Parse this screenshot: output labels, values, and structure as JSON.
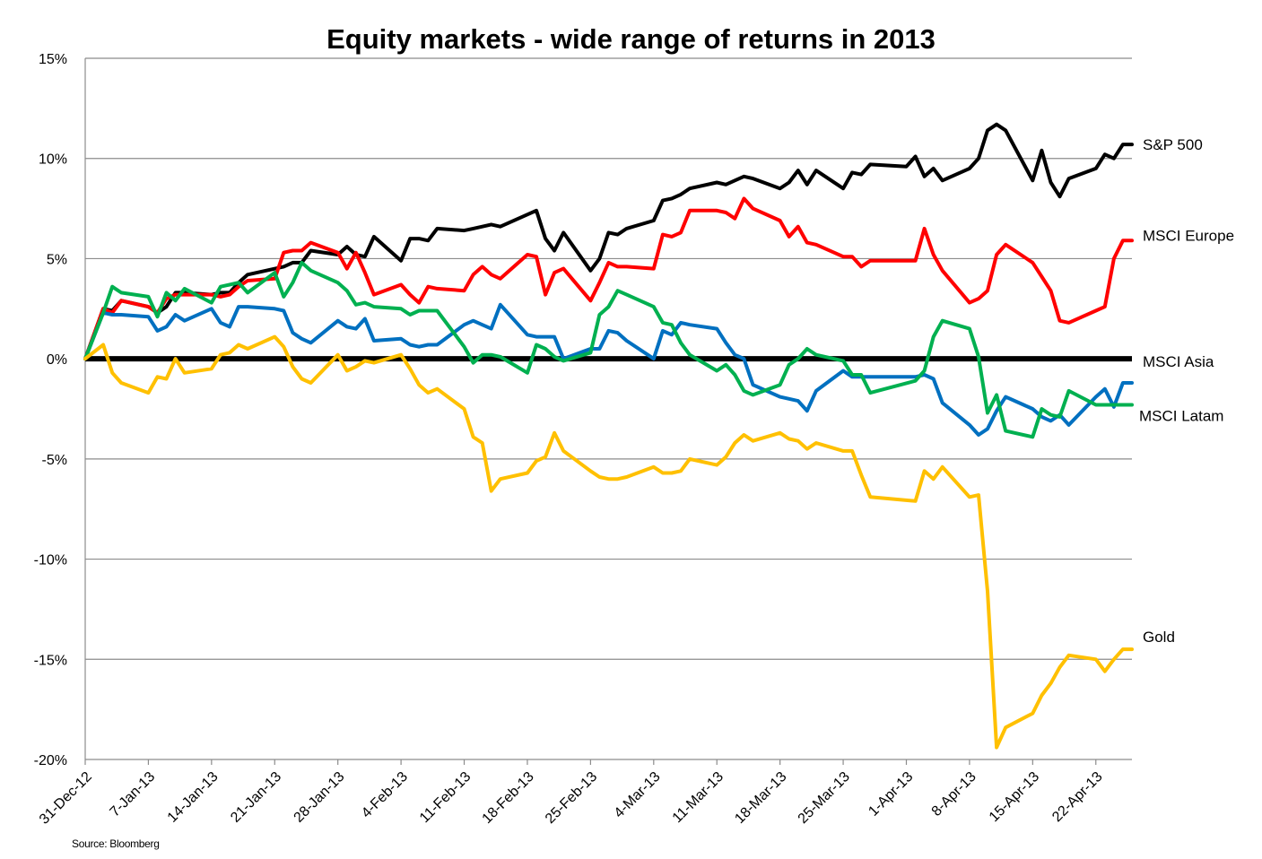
{
  "chart_data": {
    "type": "line",
    "title": "Equity markets - wide range of returns in 2013",
    "xlabel": "",
    "ylabel": "",
    "ylim": [
      -20,
      15
    ],
    "yticks": [
      15,
      10,
      5,
      0,
      -5,
      -10,
      -15,
      -20
    ],
    "ytick_labels": [
      "15%",
      "10%",
      "5%",
      "0%",
      "-5%",
      "-10%",
      "-15%",
      "-20%"
    ],
    "x_start": "2012-12-31",
    "x_end": "2013-04-26",
    "xtick_dates": [
      "2012-12-31",
      "2013-01-07",
      "2013-01-14",
      "2013-01-21",
      "2013-01-28",
      "2013-02-04",
      "2013-02-11",
      "2013-02-18",
      "2013-02-25",
      "2013-03-04",
      "2013-03-11",
      "2013-03-18",
      "2013-03-25",
      "2013-04-01",
      "2013-04-08",
      "2013-04-15",
      "2013-04-22"
    ],
    "xtick_labels": [
      "31-Dec-12",
      "7-Jan-13",
      "14-Jan-13",
      "21-Jan-13",
      "28-Jan-13",
      "4-Feb-13",
      "11-Feb-13",
      "18-Feb-13",
      "25-Feb-13",
      "4-Mar-13",
      "11-Mar-13",
      "18-Mar-13",
      "25-Mar-13",
      "1-Apr-13",
      "8-Apr-13",
      "15-Apr-13",
      "22-Apr-13"
    ],
    "zero_line": true,
    "grid": "horizontal",
    "series": [
      {
        "name": "S&P 500",
        "color": "#000000",
        "x": [
          "2012-12-31",
          "2013-01-02",
          "2013-01-03",
          "2013-01-04",
          "2013-01-07",
          "2013-01-08",
          "2013-01-09",
          "2013-01-10",
          "2013-01-11",
          "2013-01-14",
          "2013-01-15",
          "2013-01-16",
          "2013-01-17",
          "2013-01-18",
          "2013-01-22",
          "2013-01-23",
          "2013-01-24",
          "2013-01-25",
          "2013-01-28",
          "2013-01-29",
          "2013-01-30",
          "2013-01-31",
          "2013-02-01",
          "2013-02-04",
          "2013-02-05",
          "2013-02-06",
          "2013-02-07",
          "2013-02-08",
          "2013-02-11",
          "2013-02-12",
          "2013-02-13",
          "2013-02-14",
          "2013-02-15",
          "2013-02-19",
          "2013-02-20",
          "2013-02-21",
          "2013-02-22",
          "2013-02-25",
          "2013-02-26",
          "2013-02-27",
          "2013-02-28",
          "2013-03-01",
          "2013-03-04",
          "2013-03-05",
          "2013-03-06",
          "2013-03-07",
          "2013-03-08",
          "2013-03-11",
          "2013-03-12",
          "2013-03-13",
          "2013-03-14",
          "2013-03-15",
          "2013-03-18",
          "2013-03-19",
          "2013-03-20",
          "2013-03-21",
          "2013-03-22",
          "2013-03-25",
          "2013-03-26",
          "2013-03-27",
          "2013-03-28",
          "2013-04-01",
          "2013-04-02",
          "2013-04-03",
          "2013-04-04",
          "2013-04-05",
          "2013-04-08",
          "2013-04-09",
          "2013-04-10",
          "2013-04-11",
          "2013-04-12",
          "2013-04-15",
          "2013-04-16",
          "2013-04-17",
          "2013-04-18",
          "2013-04-19",
          "2013-04-22",
          "2013-04-23",
          "2013-04-24",
          "2013-04-25",
          "2013-04-26"
        ],
        "values": [
          0.0,
          2.5,
          2.4,
          2.9,
          2.6,
          2.3,
          2.6,
          3.3,
          3.3,
          3.2,
          3.3,
          3.3,
          3.8,
          4.2,
          4.6,
          4.8,
          4.8,
          5.4,
          5.2,
          5.6,
          5.2,
          5.1,
          6.1,
          4.9,
          6.0,
          6.0,
          5.9,
          6.5,
          6.4,
          6.5,
          6.6,
          6.7,
          6.6,
          7.4,
          6.0,
          5.4,
          6.3,
          4.4,
          5.0,
          6.3,
          6.2,
          6.5,
          6.9,
          7.9,
          8.0,
          8.2,
          8.5,
          8.8,
          8.7,
          8.9,
          9.1,
          9.0,
          8.5,
          8.8,
          9.4,
          8.7,
          9.4,
          8.5,
          9.3,
          9.2,
          9.7,
          9.6,
          10.1,
          9.1,
          9.5,
          8.9,
          9.5,
          10.0,
          11.4,
          11.7,
          11.4,
          8.9,
          10.4,
          8.8,
          8.1,
          9.0,
          9.5,
          10.2,
          10.0,
          10.7,
          10.7
        ]
      },
      {
        "name": "MSCI Europe",
        "color": "#ff0000",
        "x": [
          "2012-12-31",
          "2013-01-02",
          "2013-01-03",
          "2013-01-04",
          "2013-01-07",
          "2013-01-08",
          "2013-01-09",
          "2013-01-10",
          "2013-01-11",
          "2013-01-14",
          "2013-01-15",
          "2013-01-16",
          "2013-01-17",
          "2013-01-18",
          "2013-01-21",
          "2013-01-22",
          "2013-01-23",
          "2013-01-24",
          "2013-01-25",
          "2013-01-28",
          "2013-01-29",
          "2013-01-30",
          "2013-01-31",
          "2013-02-01",
          "2013-02-04",
          "2013-02-05",
          "2013-02-06",
          "2013-02-07",
          "2013-02-08",
          "2013-02-11",
          "2013-02-12",
          "2013-02-13",
          "2013-02-14",
          "2013-02-15",
          "2013-02-18",
          "2013-02-19",
          "2013-02-20",
          "2013-02-21",
          "2013-02-22",
          "2013-02-25",
          "2013-02-26",
          "2013-02-27",
          "2013-02-28",
          "2013-03-01",
          "2013-03-04",
          "2013-03-05",
          "2013-03-06",
          "2013-03-07",
          "2013-03-08",
          "2013-03-11",
          "2013-03-12",
          "2013-03-13",
          "2013-03-14",
          "2013-03-15",
          "2013-03-18",
          "2013-03-19",
          "2013-03-20",
          "2013-03-21",
          "2013-03-22",
          "2013-03-25",
          "2013-03-26",
          "2013-03-27",
          "2013-03-28",
          "2013-04-02",
          "2013-04-03",
          "2013-04-04",
          "2013-04-05",
          "2013-04-08",
          "2013-04-09",
          "2013-04-10",
          "2013-04-11",
          "2013-04-12",
          "2013-04-15",
          "2013-04-16",
          "2013-04-17",
          "2013-04-18",
          "2013-04-19",
          "2013-04-22",
          "2013-04-23",
          "2013-04-24",
          "2013-04-25",
          "2013-04-26"
        ],
        "values": [
          0.0,
          2.5,
          2.3,
          2.9,
          2.6,
          2.3,
          3.0,
          3.2,
          3.2,
          3.2,
          3.1,
          3.2,
          3.6,
          3.9,
          4.0,
          5.3,
          5.4,
          5.4,
          5.8,
          5.3,
          4.5,
          5.3,
          4.3,
          3.2,
          3.7,
          3.2,
          2.8,
          3.6,
          3.5,
          3.4,
          4.2,
          4.6,
          4.2,
          4.0,
          5.2,
          5.1,
          3.2,
          4.3,
          4.5,
          2.9,
          3.8,
          4.8,
          4.6,
          4.6,
          4.5,
          6.2,
          6.1,
          6.3,
          7.4,
          7.4,
          7.3,
          7.0,
          8.0,
          7.5,
          6.9,
          6.1,
          6.6,
          5.8,
          5.7,
          5.1,
          5.1,
          4.6,
          4.9,
          4.9,
          6.5,
          5.2,
          4.4,
          2.8,
          3.0,
          3.4,
          5.2,
          5.7,
          4.8,
          4.1,
          3.4,
          1.9,
          1.8,
          2.4,
          2.6,
          5.0,
          5.9,
          5.9
        ]
      },
      {
        "name": "MSCI Asia",
        "color": "#0070c0",
        "x": [
          "2012-12-31",
          "2013-01-02",
          "2013-01-03",
          "2013-01-04",
          "2013-01-07",
          "2013-01-08",
          "2013-01-09",
          "2013-01-10",
          "2013-01-11",
          "2013-01-14",
          "2013-01-15",
          "2013-01-16",
          "2013-01-17",
          "2013-01-18",
          "2013-01-21",
          "2013-01-22",
          "2013-01-23",
          "2013-01-24",
          "2013-01-25",
          "2013-01-28",
          "2013-01-29",
          "2013-01-30",
          "2013-01-31",
          "2013-02-01",
          "2013-02-04",
          "2013-02-05",
          "2013-02-06",
          "2013-02-07",
          "2013-02-08",
          "2013-02-11",
          "2013-02-12",
          "2013-02-13",
          "2013-02-14",
          "2013-02-15",
          "2013-02-18",
          "2013-02-19",
          "2013-02-20",
          "2013-02-21",
          "2013-02-22",
          "2013-02-25",
          "2013-02-26",
          "2013-02-27",
          "2013-02-28",
          "2013-03-01",
          "2013-03-04",
          "2013-03-05",
          "2013-03-06",
          "2013-03-07",
          "2013-03-08",
          "2013-03-11",
          "2013-03-12",
          "2013-03-13",
          "2013-03-14",
          "2013-03-15",
          "2013-03-18",
          "2013-03-19",
          "2013-03-20",
          "2013-03-21",
          "2013-03-22",
          "2013-03-25",
          "2013-03-26",
          "2013-03-27",
          "2013-03-28",
          "2013-04-02",
          "2013-04-03",
          "2013-04-04",
          "2013-04-05",
          "2013-04-08",
          "2013-04-09",
          "2013-04-10",
          "2013-04-11",
          "2013-04-12",
          "2013-04-15",
          "2013-04-16",
          "2013-04-17",
          "2013-04-18",
          "2013-04-19",
          "2013-04-22",
          "2013-04-23",
          "2013-04-24",
          "2013-04-25",
          "2013-04-26"
        ],
        "values": [
          0.0,
          2.3,
          2.2,
          2.2,
          2.1,
          1.4,
          1.6,
          2.2,
          1.9,
          2.5,
          1.8,
          1.6,
          2.6,
          2.6,
          2.5,
          2.4,
          1.3,
          1.0,
          0.8,
          1.9,
          1.6,
          1.5,
          2.0,
          0.9,
          1.0,
          0.7,
          0.6,
          0.7,
          0.7,
          1.7,
          1.9,
          1.7,
          1.5,
          2.7,
          1.2,
          1.1,
          1.1,
          1.1,
          0.0,
          0.5,
          0.5,
          1.4,
          1.3,
          0.9,
          0.0,
          1.4,
          1.2,
          1.8,
          1.7,
          1.5,
          0.8,
          0.2,
          0.0,
          -1.3,
          -1.9,
          -2.0,
          -2.1,
          -2.6,
          -1.6,
          -0.6,
          -0.9,
          -0.9,
          -0.9,
          -0.9,
          -0.8,
          -1.0,
          -2.2,
          -3.3,
          -3.8,
          -3.5,
          -2.6,
          -1.9,
          -2.5,
          -2.9,
          -3.1,
          -2.8,
          -3.3,
          -1.9,
          -1.5,
          -2.4,
          -1.2,
          -1.2
        ]
      },
      {
        "name": "MSCI Latam",
        "color": "#00b050",
        "x": [
          "2012-12-31",
          "2013-01-02",
          "2013-01-03",
          "2013-01-04",
          "2013-01-07",
          "2013-01-08",
          "2013-01-09",
          "2013-01-10",
          "2013-01-11",
          "2013-01-14",
          "2013-01-15",
          "2013-01-16",
          "2013-01-17",
          "2013-01-18",
          "2013-01-21",
          "2013-01-22",
          "2013-01-23",
          "2013-01-24",
          "2013-01-25",
          "2013-01-28",
          "2013-01-29",
          "2013-01-30",
          "2013-01-31",
          "2013-02-01",
          "2013-02-04",
          "2013-02-05",
          "2013-02-06",
          "2013-02-07",
          "2013-02-08",
          "2013-02-11",
          "2013-02-12",
          "2013-02-13",
          "2013-02-14",
          "2013-02-15",
          "2013-02-18",
          "2013-02-19",
          "2013-02-20",
          "2013-02-21",
          "2013-02-22",
          "2013-02-25",
          "2013-02-26",
          "2013-02-27",
          "2013-02-28",
          "2013-03-01",
          "2013-03-04",
          "2013-03-05",
          "2013-03-06",
          "2013-03-07",
          "2013-03-08",
          "2013-03-11",
          "2013-03-12",
          "2013-03-13",
          "2013-03-14",
          "2013-03-15",
          "2013-03-18",
          "2013-03-19",
          "2013-03-20",
          "2013-03-21",
          "2013-03-22",
          "2013-03-25",
          "2013-03-26",
          "2013-03-27",
          "2013-03-28",
          "2013-04-02",
          "2013-04-03",
          "2013-04-04",
          "2013-04-05",
          "2013-04-08",
          "2013-04-09",
          "2013-04-10",
          "2013-04-11",
          "2013-04-12",
          "2013-04-15",
          "2013-04-16",
          "2013-04-17",
          "2013-04-18",
          "2013-04-19",
          "2013-04-22",
          "2013-04-23",
          "2013-04-24",
          "2013-04-25",
          "2013-04-26"
        ],
        "values": [
          0.0,
          2.3,
          3.6,
          3.3,
          3.1,
          2.1,
          3.3,
          2.9,
          3.5,
          2.8,
          3.6,
          3.7,
          3.8,
          3.3,
          4.3,
          3.1,
          3.8,
          4.8,
          4.4,
          3.8,
          3.4,
          2.7,
          2.8,
          2.6,
          2.5,
          2.2,
          2.4,
          2.4,
          2.4,
          0.6,
          -0.2,
          0.2,
          0.2,
          0.1,
          -0.7,
          0.7,
          0.5,
          0.1,
          -0.1,
          0.3,
          2.2,
          2.6,
          3.4,
          3.2,
          2.6,
          1.8,
          1.7,
          0.8,
          0.2,
          -0.6,
          -0.3,
          -0.8,
          -1.6,
          -1.8,
          -1.3,
          -0.3,
          0.0,
          0.5,
          0.2,
          -0.1,
          -0.8,
          -0.8,
          -1.7,
          -1.1,
          -0.6,
          1.1,
          1.9,
          1.5,
          0.1,
          -2.7,
          -1.8,
          -3.6,
          -3.9,
          -2.5,
          -2.8,
          -2.9,
          -1.6,
          -2.3,
          -2.3,
          -2.3,
          -2.3,
          -2.3
        ]
      },
      {
        "name": "Gold",
        "color": "#ffc000",
        "x": [
          "2012-12-31",
          "2013-01-02",
          "2013-01-03",
          "2013-01-04",
          "2013-01-07",
          "2013-01-08",
          "2013-01-09",
          "2013-01-10",
          "2013-01-11",
          "2013-01-14",
          "2013-01-15",
          "2013-01-16",
          "2013-01-17",
          "2013-01-18",
          "2013-01-21",
          "2013-01-22",
          "2013-01-23",
          "2013-01-24",
          "2013-01-25",
          "2013-01-28",
          "2013-01-29",
          "2013-01-30",
          "2013-01-31",
          "2013-02-01",
          "2013-02-04",
          "2013-02-05",
          "2013-02-06",
          "2013-02-07",
          "2013-02-08",
          "2013-02-11",
          "2013-02-12",
          "2013-02-13",
          "2013-02-14",
          "2013-02-15",
          "2013-02-18",
          "2013-02-19",
          "2013-02-20",
          "2013-02-21",
          "2013-02-22",
          "2013-02-25",
          "2013-02-26",
          "2013-02-27",
          "2013-02-28",
          "2013-03-01",
          "2013-03-04",
          "2013-03-05",
          "2013-03-06",
          "2013-03-07",
          "2013-03-08",
          "2013-03-11",
          "2013-03-12",
          "2013-03-13",
          "2013-03-14",
          "2013-03-15",
          "2013-03-18",
          "2013-03-19",
          "2013-03-20",
          "2013-03-21",
          "2013-03-22",
          "2013-03-25",
          "2013-03-26",
          "2013-03-27",
          "2013-03-28",
          "2013-04-02",
          "2013-04-03",
          "2013-04-04",
          "2013-04-05",
          "2013-04-08",
          "2013-04-09",
          "2013-04-10",
          "2013-04-11",
          "2013-04-12",
          "2013-04-15",
          "2013-04-16",
          "2013-04-17",
          "2013-04-18",
          "2013-04-19",
          "2013-04-22",
          "2013-04-23",
          "2013-04-24",
          "2013-04-25",
          "2013-04-26"
        ],
        "values": [
          0.0,
          0.7,
          -0.7,
          -1.2,
          -1.7,
          -0.9,
          -1.0,
          0.0,
          -0.7,
          -0.5,
          0.2,
          0.3,
          0.7,
          0.5,
          1.1,
          0.6,
          -0.4,
          -1.0,
          -1.2,
          0.2,
          -0.6,
          -0.4,
          -0.1,
          -0.2,
          0.2,
          -0.5,
          -1.3,
          -1.7,
          -1.5,
          -2.5,
          -3.9,
          -4.2,
          -6.6,
          -6.0,
          -5.7,
          -5.1,
          -4.9,
          -3.7,
          -4.6,
          -5.6,
          -5.9,
          -6.0,
          -6.0,
          -5.9,
          -5.4,
          -5.7,
          -5.7,
          -5.6,
          -5.0,
          -5.3,
          -4.9,
          -4.2,
          -3.8,
          -4.1,
          -3.7,
          -4.0,
          -4.1,
          -4.5,
          -4.2,
          -4.6,
          -4.6,
          -5.8,
          -6.9,
          -7.1,
          -5.6,
          -6.0,
          -5.4,
          -6.9,
          -6.8,
          -11.6,
          -19.4,
          -18.4,
          -17.7,
          -16.8,
          -16.2,
          -15.4,
          -14.8,
          -15.0,
          -15.6,
          -15.0,
          -14.5,
          -14.5
        ]
      }
    ]
  },
  "source": "Source: Bloomberg"
}
